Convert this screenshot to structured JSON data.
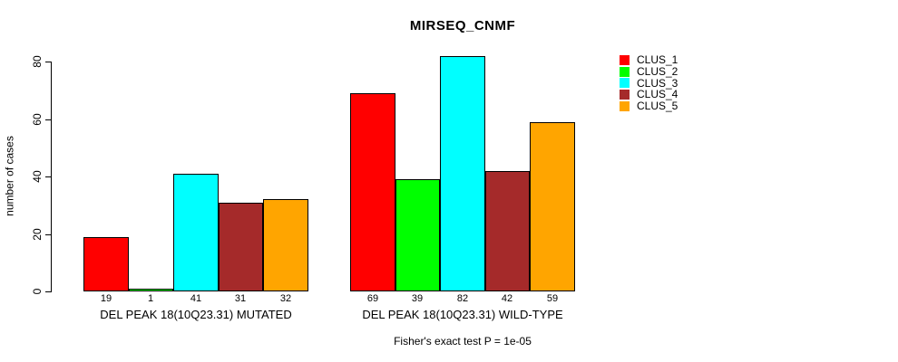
{
  "chart_data": {
    "type": "bar",
    "title": "MIRSEQ_CNMF",
    "ylabel": "number of cases",
    "xlabel": "",
    "annotation": "Fisher's exact test P = 1e-05",
    "categories": [
      "DEL PEAK 18(10Q23.31) MUTATED",
      "DEL PEAK 18(10Q23.31) WILD-TYPE"
    ],
    "series": [
      {
        "name": "CLUS_1",
        "color": "#ff0000",
        "values": [
          19,
          69
        ]
      },
      {
        "name": "CLUS_2",
        "color": "#00ff00",
        "values": [
          1,
          39
        ]
      },
      {
        "name": "CLUS_3",
        "color": "#00ffff",
        "values": [
          41,
          82
        ]
      },
      {
        "name": "CLUS_4",
        "color": "#a52a2a",
        "values": [
          31,
          42
        ]
      },
      {
        "name": "CLUS_5",
        "color": "#ffa500",
        "values": [
          32,
          59
        ]
      }
    ],
    "y_ticks": [
      0,
      20,
      40,
      60,
      80
    ],
    "ylim": [
      0,
      82
    ],
    "grid": false,
    "bar_value_labels": true,
    "legend_position": "top-right",
    "legend_entries": [
      "CLUS_1",
      "CLUS_2",
      "CLUS_3",
      "CLUS_4",
      "CLUS_5"
    ]
  }
}
